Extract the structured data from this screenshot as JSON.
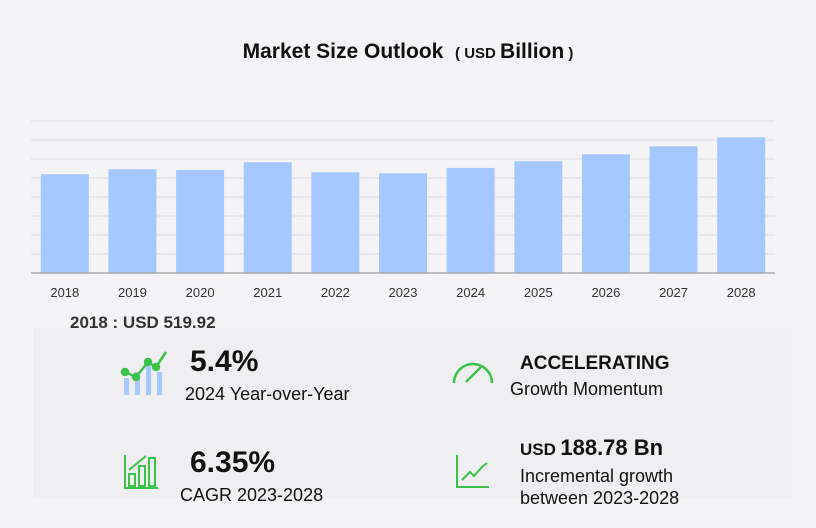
{
  "chart_data": {
    "type": "bar",
    "title": "Market Size Outlook",
    "unit_prefix": "USD",
    "unit": "Billion",
    "categories": [
      "2018",
      "2019",
      "2020",
      "2021",
      "2022",
      "2023",
      "2024",
      "2025",
      "2026",
      "2027",
      "2028"
    ],
    "values": [
      519.92,
      546,
      542,
      583,
      530,
      525,
      553,
      588,
      625,
      667,
      714
    ],
    "ylim": [
      0,
      800
    ],
    "grid": true,
    "xlabel": "",
    "ylabel": "",
    "bar_color": "#a4c8ff"
  },
  "base_label": "2018 : USD  519.92",
  "kpis": {
    "yoy_value": "5.4%",
    "yoy_label": "2024 Year-over-Year",
    "momentum_value": "ACCELERATING",
    "momentum_label": "Growth Momentum",
    "cagr_value": "6.35%",
    "cagr_label": "CAGR 2023-2028",
    "incr_prefix": "USD",
    "incr_value": "188.78 Bn",
    "incr_label1": "Incremental growth",
    "incr_label2": "between 2023-2028"
  },
  "icon_color": "#3cc14a"
}
